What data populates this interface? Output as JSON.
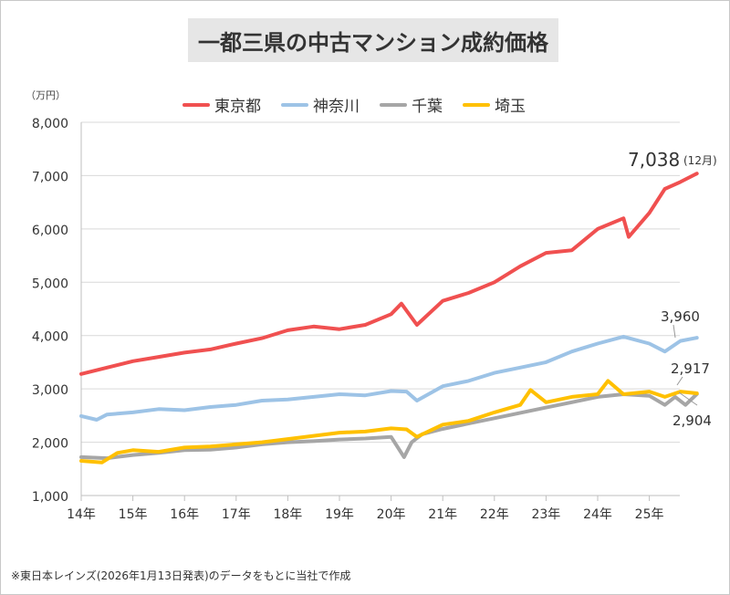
{
  "chart_data": {
    "type": "line",
    "title": "一都三県の中古マンション成約価格",
    "y_unit": "（万円）",
    "ylim": [
      1000,
      8000
    ],
    "y_ticks": [
      "1,000",
      "2,000",
      "3,000",
      "4,000",
      "5,000",
      "6,000",
      "7,000",
      "8,000"
    ],
    "x_ticks": [
      "14年",
      "15年",
      "16年",
      "17年",
      "18年",
      "19年",
      "20年",
      "21年",
      "22年",
      "23年",
      "24年",
      "25年"
    ],
    "x_start": 2014.0,
    "series": [
      {
        "name": "東京都",
        "color": "#f05050",
        "x": [
          2014.0,
          2014.5,
          2015.0,
          2015.5,
          2016.0,
          2016.5,
          2017.0,
          2017.5,
          2018.0,
          2018.5,
          2019.0,
          2019.5,
          2020.0,
          2020.2,
          2020.5,
          2021.0,
          2021.5,
          2022.0,
          2022.5,
          2023.0,
          2023.5,
          2024.0,
          2024.5,
          2024.6,
          2025.0,
          2025.3,
          2025.6,
          2025.92
        ],
        "values": [
          3280,
          3400,
          3520,
          3600,
          3680,
          3740,
          3850,
          3950,
          4100,
          4170,
          4120,
          4200,
          4400,
          4600,
          4200,
          4650,
          4800,
          5000,
          5300,
          5550,
          5600,
          6000,
          6200,
          5850,
          6300,
          6750,
          6880,
          7038
        ]
      },
      {
        "name": "神奈川",
        "color": "#9dc3e6",
        "x": [
          2014.0,
          2014.3,
          2014.5,
          2015.0,
          2015.5,
          2016.0,
          2016.5,
          2017.0,
          2017.5,
          2018.0,
          2018.5,
          2019.0,
          2019.5,
          2020.0,
          2020.3,
          2020.5,
          2021.0,
          2021.5,
          2022.0,
          2022.5,
          2023.0,
          2023.5,
          2024.0,
          2024.5,
          2025.0,
          2025.3,
          2025.6,
          2025.92
        ],
        "values": [
          2490,
          2420,
          2520,
          2560,
          2620,
          2600,
          2660,
          2700,
          2780,
          2800,
          2850,
          2900,
          2880,
          2960,
          2950,
          2780,
          3050,
          3150,
          3300,
          3400,
          3500,
          3700,
          3850,
          3980,
          3850,
          3700,
          3900,
          3960
        ]
      },
      {
        "name": "千葉",
        "color": "#a6a6a6",
        "x": [
          2014.0,
          2014.5,
          2015.0,
          2015.5,
          2016.0,
          2016.5,
          2017.0,
          2017.5,
          2018.0,
          2018.5,
          2019.0,
          2019.5,
          2020.0,
          2020.25,
          2020.4,
          2020.6,
          2021.0,
          2021.5,
          2022.0,
          2022.5,
          2023.0,
          2023.5,
          2024.0,
          2024.5,
          2025.0,
          2025.3,
          2025.5,
          2025.7,
          2025.92
        ],
        "values": [
          1720,
          1700,
          1760,
          1800,
          1850,
          1860,
          1900,
          1960,
          2000,
          2020,
          2050,
          2070,
          2100,
          1720,
          2000,
          2150,
          2250,
          2350,
          2450,
          2550,
          2650,
          2750,
          2850,
          2900,
          2870,
          2700,
          2850,
          2700,
          2904
        ]
      },
      {
        "name": "埼玉",
        "color": "#ffc000",
        "x": [
          2014.0,
          2014.4,
          2014.7,
          2015.0,
          2015.5,
          2016.0,
          2016.5,
          2017.0,
          2017.5,
          2018.0,
          2018.5,
          2019.0,
          2019.5,
          2020.0,
          2020.3,
          2020.5,
          2021.0,
          2021.5,
          2022.0,
          2022.5,
          2022.7,
          2023.0,
          2023.5,
          2024.0,
          2024.2,
          2024.5,
          2025.0,
          2025.3,
          2025.6,
          2025.92
        ],
        "values": [
          1650,
          1620,
          1800,
          1850,
          1820,
          1900,
          1920,
          1960,
          2000,
          2060,
          2120,
          2180,
          2200,
          2260,
          2240,
          2100,
          2330,
          2400,
          2560,
          2700,
          2980,
          2750,
          2850,
          2900,
          3150,
          2900,
          2950,
          2850,
          2950,
          2917
        ]
      }
    ],
    "annotations": {
      "tokyo_value": "7,038",
      "tokyo_month": "(12月)",
      "kanagawa_value": "3,960",
      "saitama_value": "2,917",
      "chiba_value": "2,904"
    }
  },
  "source": "※東日本レインズ(2026年1月13日発表)のデータをもとに当社で作成"
}
